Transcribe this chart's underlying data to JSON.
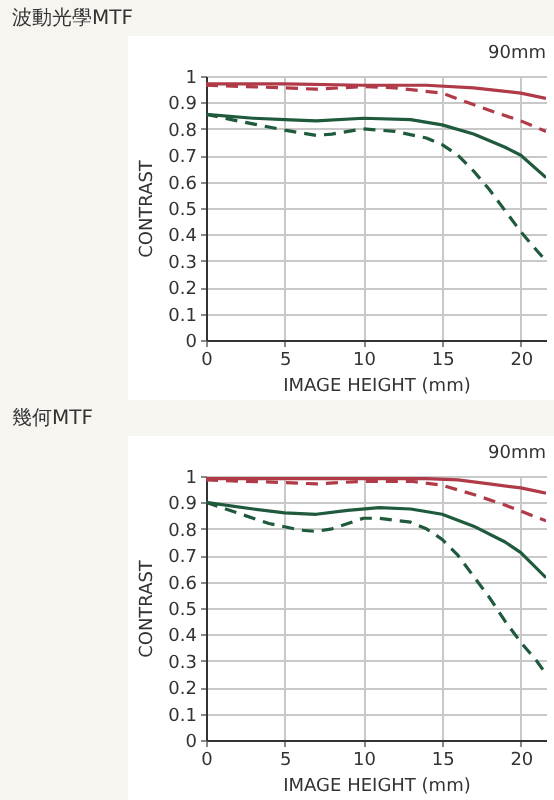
{
  "chart_data": [
    {
      "type": "line",
      "title": "波動光學MTF",
      "xlabel": "IMAGE HEIGHT (mm)",
      "ylabel": "CONTRAST",
      "annotations": [
        "90mm"
      ],
      "xlim": [
        0,
        21.6
      ],
      "ylim": [
        0,
        1
      ],
      "xticks": [
        0,
        5,
        10,
        15,
        20
      ],
      "yticks": [
        0,
        0.1,
        0.2,
        0.3,
        0.4,
        0.5,
        0.6,
        0.7,
        0.8,
        0.9,
        1
      ],
      "grid": true,
      "marker": "none",
      "series": [
        {
          "color": "#b03a48",
          "line_style": "solid",
          "x": [
            0,
            5,
            10,
            14,
            17,
            20,
            21.6
          ],
          "values": [
            0.97,
            0.97,
            0.965,
            0.965,
            0.955,
            0.935,
            0.915
          ]
        },
        {
          "color": "#b03a48",
          "line_style": "dashed",
          "x": [
            0,
            5,
            7,
            10,
            12,
            15,
            18,
            20,
            21.6
          ],
          "values": [
            0.965,
            0.955,
            0.95,
            0.96,
            0.955,
            0.935,
            0.87,
            0.83,
            0.79
          ]
        },
        {
          "color": "#1f5a3c",
          "line_style": "solid",
          "x": [
            0,
            3,
            5,
            7,
            10,
            13,
            15,
            17,
            19,
            20,
            21.6
          ],
          "values": [
            0.855,
            0.84,
            0.835,
            0.83,
            0.84,
            0.835,
            0.815,
            0.78,
            0.73,
            0.7,
            0.615
          ]
        },
        {
          "color": "#1f5a3c",
          "line_style": "dashed",
          "x": [
            0,
            2,
            5,
            7,
            8,
            10,
            12,
            14,
            15,
            16,
            17,
            18,
            19,
            20,
            21,
            21.6
          ],
          "values": [
            0.855,
            0.83,
            0.795,
            0.775,
            0.78,
            0.8,
            0.79,
            0.765,
            0.74,
            0.7,
            0.64,
            0.57,
            0.49,
            0.41,
            0.34,
            0.3
          ]
        }
      ]
    },
    {
      "type": "line",
      "title": "幾何MTF",
      "xlabel": "IMAGE HEIGHT (mm)",
      "ylabel": "CONTRAST",
      "annotations": [
        "90mm"
      ],
      "xlim": [
        0,
        21.6
      ],
      "ylim": [
        0,
        1
      ],
      "xticks": [
        0,
        5,
        10,
        15,
        20
      ],
      "yticks": [
        0,
        0.1,
        0.2,
        0.3,
        0.4,
        0.5,
        0.6,
        0.7,
        0.8,
        0.9,
        1
      ],
      "grid": true,
      "marker": "none",
      "series": [
        {
          "color": "#b03a48",
          "line_style": "solid",
          "x": [
            0,
            5,
            10,
            14,
            16,
            18,
            20,
            21.6
          ],
          "values": [
            0.99,
            0.99,
            0.99,
            0.99,
            0.985,
            0.97,
            0.955,
            0.935
          ]
        },
        {
          "color": "#b03a48",
          "line_style": "dashed",
          "x": [
            0,
            5,
            7,
            10,
            13,
            15,
            17,
            19,
            21.6
          ],
          "values": [
            0.985,
            0.975,
            0.97,
            0.98,
            0.98,
            0.965,
            0.93,
            0.89,
            0.83
          ]
        },
        {
          "color": "#1f5a3c",
          "line_style": "solid",
          "x": [
            0,
            3,
            5,
            7,
            9,
            11,
            13,
            15,
            17,
            19,
            20,
            21.6
          ],
          "values": [
            0.9,
            0.875,
            0.86,
            0.855,
            0.87,
            0.88,
            0.875,
            0.855,
            0.81,
            0.75,
            0.71,
            0.615
          ]
        },
        {
          "color": "#1f5a3c",
          "line_style": "dashed",
          "x": [
            0,
            2,
            4,
            6,
            7,
            8,
            10,
            11,
            13,
            14,
            15,
            16,
            17,
            18,
            19,
            20,
            21,
            21.6
          ],
          "values": [
            0.9,
            0.86,
            0.82,
            0.795,
            0.79,
            0.8,
            0.84,
            0.84,
            0.825,
            0.8,
            0.76,
            0.7,
            0.62,
            0.54,
            0.45,
            0.37,
            0.3,
            0.25
          ]
        }
      ]
    }
  ]
}
